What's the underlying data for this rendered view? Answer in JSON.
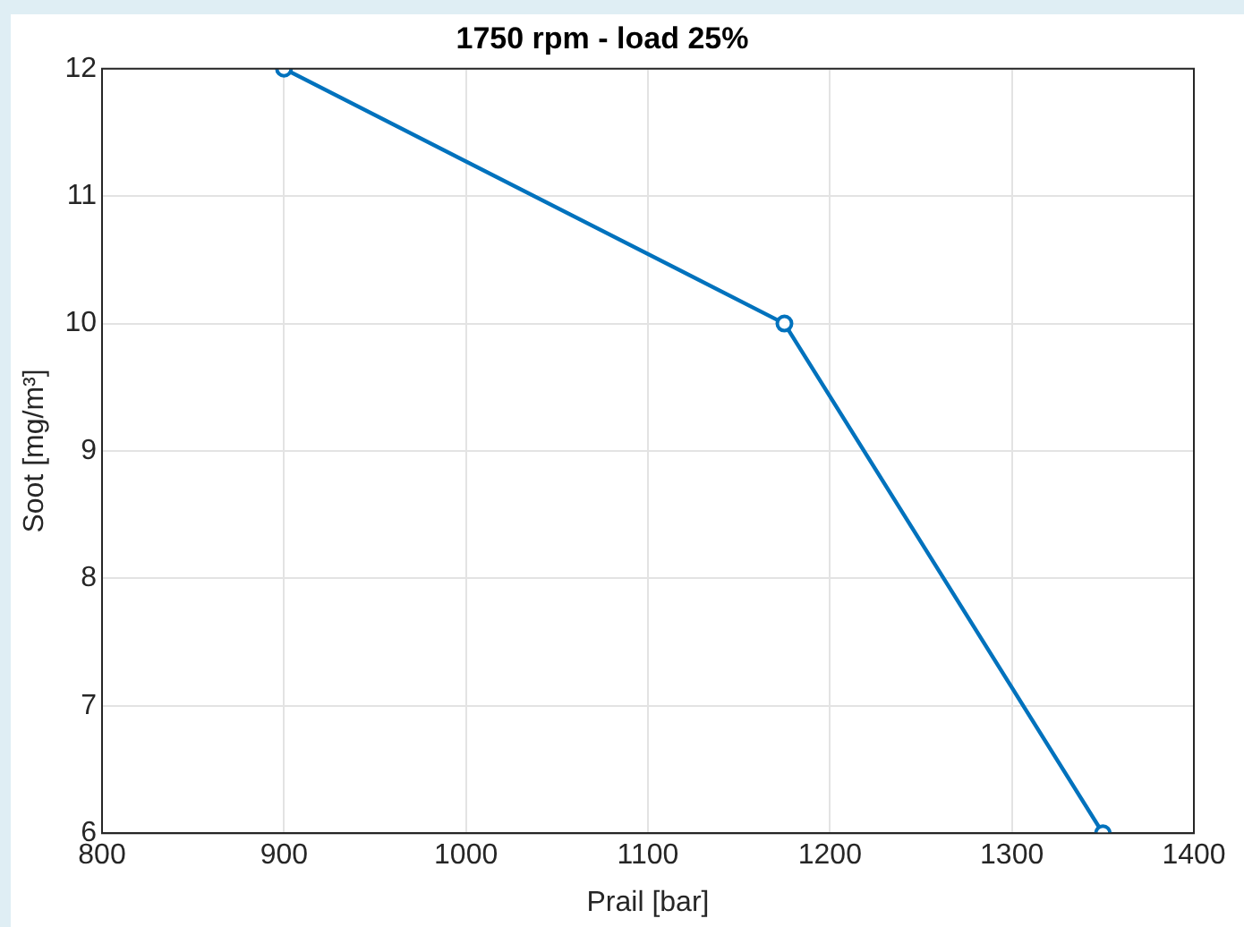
{
  "chart_data": {
    "type": "line",
    "title": "1750 rpm - load 25%",
    "xlabel": "Prail [bar]",
    "ylabel": "Soot [mg/m³]",
    "x": [
      900,
      1175,
      1350
    ],
    "series": [
      {
        "color": "#0072bd",
        "values": [
          12,
          10,
          6
        ]
      }
    ],
    "xlim": [
      800,
      1400
    ],
    "xticks": [
      800,
      900,
      1000,
      1100,
      1200,
      1300,
      1400
    ],
    "ylim": [
      6,
      12
    ],
    "yticks": [
      6,
      7,
      8,
      9,
      10,
      11,
      12
    ],
    "grid": true,
    "legend": false,
    "marker": "circle",
    "line_style": "solid"
  }
}
